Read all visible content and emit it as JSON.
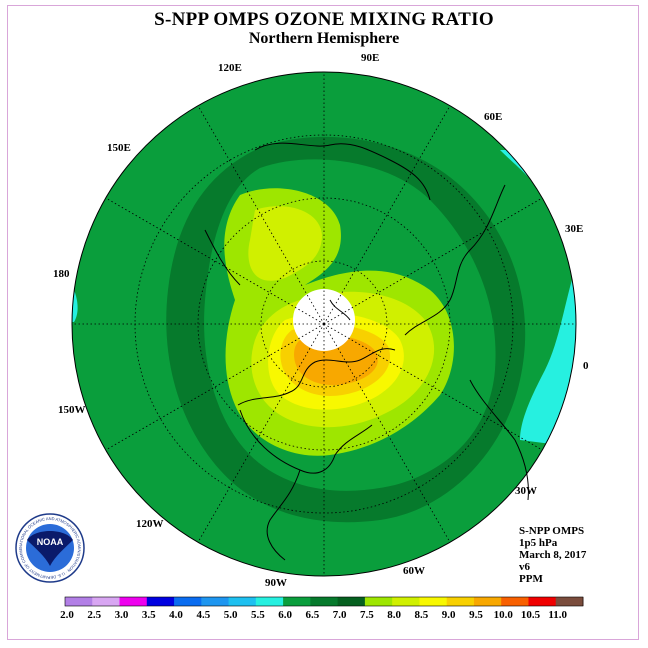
{
  "header": {
    "title": "S-NPP OMPS OZONE MIXING RATIO",
    "subtitle": "Northern Hemisphere"
  },
  "longitude_labels": [
    {
      "text": "90E"
    },
    {
      "text": "60E"
    },
    {
      "text": "30E"
    },
    {
      "text": "0"
    },
    {
      "text": "30W"
    },
    {
      "text": "60W"
    },
    {
      "text": "90W"
    },
    {
      "text": "120W"
    },
    {
      "text": "150W"
    },
    {
      "text": "180"
    },
    {
      "text": "150E"
    },
    {
      "text": "120E"
    }
  ],
  "info": {
    "instrument": "S-NPP OMPS",
    "level": "1p5 hPa",
    "date": "March 8, 2017",
    "version": "v6",
    "units": "PPM"
  },
  "logo": {
    "center_text": "NOAA",
    "ring_text": "NATIONAL OCEANIC AND ATMOSPHERIC ADMINISTRATION · U.S. DEPARTMENT OF COMMERCE"
  },
  "colorbar": {
    "labels": [
      "2.0",
      "2.5",
      "3.0",
      "3.5",
      "4.0",
      "4.5",
      "5.0",
      "5.5",
      "6.0",
      "6.5",
      "7.0",
      "7.5",
      "8.0",
      "8.5",
      "9.0",
      "9.5",
      "10.0",
      "10.5",
      "11.0"
    ],
    "colors": [
      "#b27fe6",
      "#d8a6f2",
      "#ee00ee",
      "#0000e0",
      "#0a6cf0",
      "#1e96f0",
      "#1ec0f0",
      "#26f0e0",
      "#0a9e3c",
      "#067a2c",
      "#05601f",
      "#9ee600",
      "#d0f000",
      "#f8f800",
      "#f8d000",
      "#f8a800",
      "#f86000",
      "#f00000",
      "#7a4c3c"
    ]
  },
  "map_colors": {
    "ocean_outer": "#0a9e3c",
    "ring_dark": "#067a2c",
    "ring_mid": "#0a9e3c",
    "band_light": "#9ee600",
    "band_yellow_green": "#d0f000",
    "band_yellow": "#f8f800",
    "band_gold": "#f8d000",
    "band_orange": "#f8a800",
    "cyan_region": "#26f0e0",
    "polar_night": "#ffffff"
  }
}
